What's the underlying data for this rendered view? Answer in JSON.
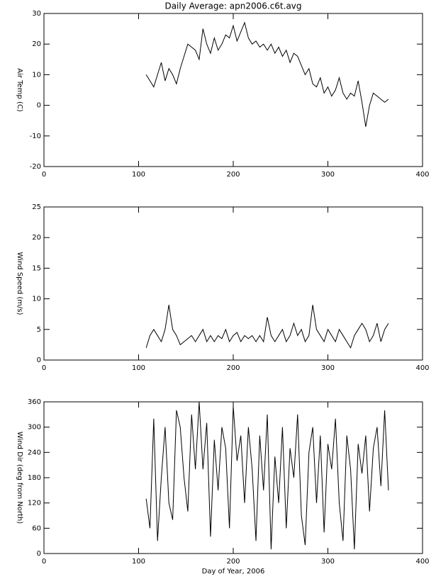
{
  "chart_data": [
    {
      "type": "line",
      "title": "Daily Average: apn2006.c6t.avg",
      "ylabel": "Air Temp (C)",
      "xlim": [
        0,
        400
      ],
      "xticks": [
        0,
        100,
        200,
        300,
        400
      ],
      "ylim": [
        -20,
        30
      ],
      "yticks": [
        -20,
        -10,
        0,
        10,
        20,
        30
      ],
      "x": [
        108,
        112,
        116,
        120,
        124,
        128,
        132,
        136,
        140,
        144,
        148,
        152,
        156,
        160,
        164,
        168,
        172,
        176,
        180,
        184,
        188,
        192,
        196,
        200,
        204,
        208,
        212,
        216,
        220,
        224,
        228,
        232,
        236,
        240,
        244,
        248,
        252,
        256,
        260,
        264,
        268,
        272,
        276,
        280,
        284,
        288,
        292,
        296,
        300,
        304,
        308,
        312,
        316,
        320,
        324,
        328,
        332,
        336,
        340,
        344,
        348,
        352,
        356,
        360,
        364
      ],
      "series": [
        {
          "color": "#000000",
          "values": [
            10,
            8,
            6,
            10,
            14,
            8,
            12,
            10,
            7,
            12,
            16,
            20,
            19,
            18,
            15,
            25,
            20,
            17,
            22,
            18,
            20,
            23,
            22,
            26,
            21,
            24,
            27,
            22,
            20,
            21,
            19,
            20,
            18,
            20,
            17,
            19,
            16,
            18,
            14,
            17,
            16,
            13,
            10,
            12,
            7,
            6,
            9,
            4,
            6,
            3,
            5,
            9,
            4,
            2,
            4,
            3,
            8,
            1,
            -7,
            0,
            4,
            3,
            2,
            1,
            2
          ]
        }
      ]
    },
    {
      "type": "line",
      "ylabel": "Wind Speed (m/s)",
      "xlim": [
        0,
        400
      ],
      "xticks": [
        0,
        100,
        200,
        300,
        400
      ],
      "ylim": [
        0,
        25
      ],
      "yticks": [
        0,
        5,
        10,
        15,
        20,
        25
      ],
      "x": [
        108,
        112,
        116,
        120,
        124,
        128,
        132,
        136,
        140,
        144,
        148,
        152,
        156,
        160,
        164,
        168,
        172,
        176,
        180,
        184,
        188,
        192,
        196,
        200,
        204,
        208,
        212,
        216,
        220,
        224,
        228,
        232,
        236,
        240,
        244,
        248,
        252,
        256,
        260,
        264,
        268,
        272,
        276,
        280,
        284,
        288,
        292,
        296,
        300,
        304,
        308,
        312,
        316,
        320,
        324,
        328,
        332,
        336,
        340,
        344,
        348,
        352,
        356,
        360,
        364
      ],
      "series": [
        {
          "color": "#000000",
          "values": [
            2,
            4,
            5,
            4,
            3,
            5,
            9,
            5,
            4,
            2.5,
            3,
            3.5,
            4,
            3,
            4,
            5,
            3,
            4,
            3,
            4,
            3.5,
            5,
            3,
            4,
            4.5,
            3,
            4,
            3.5,
            4,
            3,
            4,
            3,
            7,
            4,
            3,
            4,
            5,
            3,
            4,
            6,
            4,
            5,
            3,
            4,
            9,
            5,
            4,
            3,
            5,
            4,
            3,
            5,
            4,
            3,
            2,
            4,
            5,
            6,
            5,
            3,
            4,
            6,
            3,
            5,
            6
          ]
        }
      ]
    },
    {
      "type": "line",
      "ylabel": "Wind Dir (deg from North)",
      "xlabel": "Day of Year, 2006",
      "xlim": [
        0,
        400
      ],
      "xticks": [
        0,
        100,
        200,
        300,
        400
      ],
      "ylim": [
        0,
        360
      ],
      "yticks": [
        0,
        60,
        120,
        180,
        240,
        300,
        360
      ],
      "x": [
        108,
        112,
        116,
        120,
        124,
        128,
        132,
        136,
        140,
        144,
        148,
        152,
        156,
        160,
        164,
        168,
        172,
        176,
        180,
        184,
        188,
        192,
        196,
        200,
        204,
        208,
        212,
        216,
        220,
        224,
        228,
        232,
        236,
        240,
        244,
        248,
        252,
        256,
        260,
        264,
        268,
        272,
        276,
        280,
        284,
        288,
        292,
        296,
        300,
        304,
        308,
        312,
        316,
        320,
        324,
        328,
        332,
        336,
        340,
        344,
        348,
        352,
        356,
        360,
        364
      ],
      "series": [
        {
          "color": "#000000",
          "values": [
            130,
            60,
            320,
            30,
            180,
            300,
            120,
            80,
            340,
            300,
            180,
            100,
            330,
            200,
            360,
            200,
            310,
            40,
            270,
            150,
            300,
            250,
            60,
            350,
            220,
            280,
            120,
            300,
            200,
            30,
            280,
            150,
            330,
            10,
            230,
            120,
            300,
            60,
            250,
            180,
            330,
            90,
            20,
            240,
            300,
            120,
            280,
            50,
            260,
            200,
            320,
            120,
            30,
            280,
            200,
            10,
            260,
            190,
            280,
            100,
            250,
            300,
            160,
            340,
            150
          ]
        }
      ]
    }
  ]
}
